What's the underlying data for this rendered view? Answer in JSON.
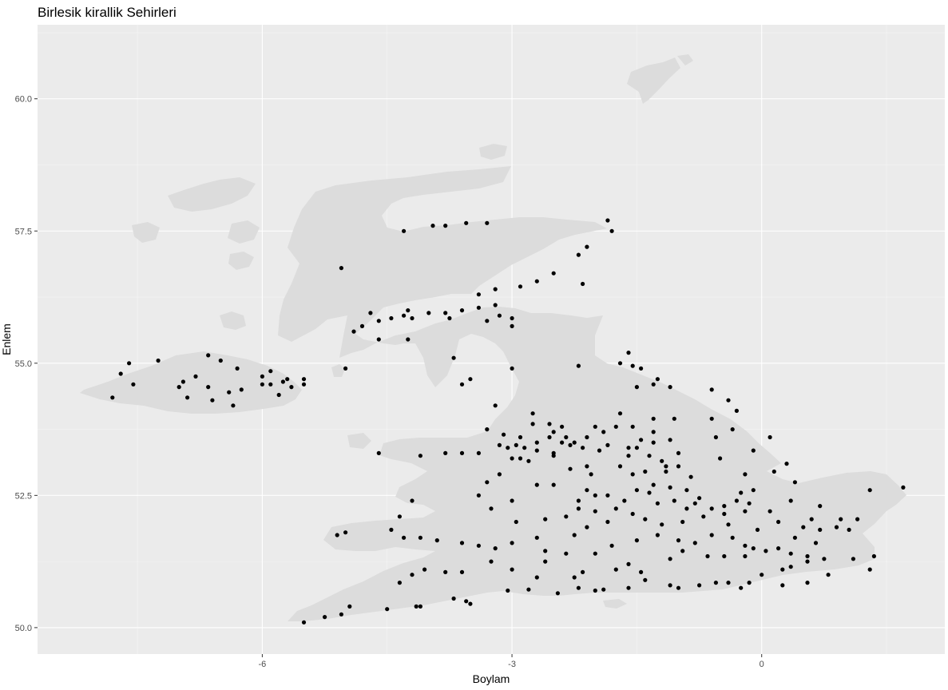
{
  "chart_data": {
    "type": "scatter",
    "title": "Birlesik kirallik Sehirleri",
    "xlabel": "Boylam",
    "ylabel": "Enlem",
    "xlim": [
      -8.7,
      2.2
    ],
    "ylim": [
      49.5,
      61.4
    ],
    "x_ticks": [
      {
        "value": -6,
        "label": "-6"
      },
      {
        "value": -3,
        "label": "-3"
      },
      {
        "value": 0,
        "label": "0"
      }
    ],
    "y_ticks": [
      {
        "value": 50.0,
        "label": "50.0"
      },
      {
        "value": 52.5,
        "label": "52.5"
      },
      {
        "value": 55.0,
        "label": "55.0"
      },
      {
        "value": 57.5,
        "label": "57.5"
      },
      {
        "value": 60.0,
        "label": "60.0"
      }
    ],
    "grid": true,
    "background_color": "#ebebeb",
    "land_color": "#dcdcdc",
    "point_color": "#000000",
    "points": [
      [
        -1.85,
        57.7
      ],
      [
        -1.8,
        57.5
      ],
      [
        -2.1,
        57.2
      ],
      [
        -2.2,
        57.05
      ],
      [
        -2.5,
        56.7
      ],
      [
        -2.7,
        56.55
      ],
      [
        -2.9,
        56.45
      ],
      [
        -3.2,
        56.4
      ],
      [
        -3.4,
        56.3
      ],
      [
        -3.2,
        56.1
      ],
      [
        -3.6,
        56.0
      ],
      [
        -3.4,
        56.05
      ],
      [
        -3.8,
        55.95
      ],
      [
        -4.0,
        55.95
      ],
      [
        -4.2,
        55.85
      ],
      [
        -4.3,
        55.9
      ],
      [
        -4.45,
        55.85
      ],
      [
        -4.6,
        55.8
      ],
      [
        -4.7,
        55.95
      ],
      [
        -4.8,
        55.7
      ],
      [
        -4.9,
        55.6
      ],
      [
        -4.6,
        55.45
      ],
      [
        -4.25,
        55.45
      ],
      [
        -3.7,
        55.1
      ],
      [
        -5.0,
        54.9
      ],
      [
        -3.6,
        54.6
      ],
      [
        -3.5,
        54.7
      ],
      [
        -3.0,
        54.9
      ],
      [
        -3.2,
        54.2
      ],
      [
        -2.75,
        54.05
      ],
      [
        -2.2,
        54.95
      ],
      [
        -1.6,
        55.2
      ],
      [
        -1.7,
        55.0
      ],
      [
        -1.55,
        54.95
      ],
      [
        -1.45,
        54.9
      ],
      [
        -1.3,
        54.6
      ],
      [
        -1.25,
        54.7
      ],
      [
        -1.1,
        54.55
      ],
      [
        -1.5,
        54.55
      ],
      [
        -0.6,
        54.5
      ],
      [
        -0.4,
        54.3
      ],
      [
        -0.3,
        54.1
      ],
      [
        -1.55,
        53.8
      ],
      [
        -1.75,
        53.8
      ],
      [
        -1.9,
        53.7
      ],
      [
        -2.1,
        53.6
      ],
      [
        -2.25,
        53.5
      ],
      [
        -2.4,
        53.5
      ],
      [
        -2.55,
        53.6
      ],
      [
        -2.7,
        53.5
      ],
      [
        -2.85,
        53.4
      ],
      [
        -2.95,
        53.45
      ],
      [
        -3.05,
        53.4
      ],
      [
        -2.5,
        53.7
      ],
      [
        -2.4,
        53.8
      ],
      [
        -2.3,
        53.45
      ],
      [
        -2.15,
        53.4
      ],
      [
        -1.5,
        53.4
      ],
      [
        -1.3,
        53.5
      ],
      [
        -1.1,
        53.55
      ],
      [
        -1.3,
        53.7
      ],
      [
        -1.45,
        53.55
      ],
      [
        -1.0,
        53.3
      ],
      [
        -1.15,
        53.05
      ],
      [
        -1.4,
        52.95
      ],
      [
        -1.55,
        52.9
      ],
      [
        -1.5,
        52.6
      ],
      [
        -1.3,
        52.7
      ],
      [
        -1.85,
        52.5
      ],
      [
        -2.0,
        52.5
      ],
      [
        -2.1,
        52.6
      ],
      [
        -2.2,
        52.4
      ],
      [
        -1.65,
        52.4
      ],
      [
        -1.25,
        52.35
      ],
      [
        -0.9,
        52.25
      ],
      [
        -0.7,
        52.1
      ],
      [
        -0.45,
        52.15
      ],
      [
        -0.2,
        52.2
      ],
      [
        0.1,
        52.2
      ],
      [
        0.2,
        52.0
      ],
      [
        0.5,
        51.9
      ],
      [
        0.7,
        51.85
      ],
      [
        0.9,
        51.9
      ],
      [
        1.15,
        52.05
      ],
      [
        1.3,
        52.6
      ],
      [
        1.7,
        52.65
      ],
      [
        0.4,
        52.75
      ],
      [
        -0.1,
        52.6
      ],
      [
        -0.25,
        52.55
      ],
      [
        -0.45,
        52.3
      ],
      [
        -0.75,
        52.45
      ],
      [
        -1.1,
        52.65
      ],
      [
        -0.6,
        51.75
      ],
      [
        -0.35,
        51.7
      ],
      [
        -0.2,
        51.55
      ],
      [
        -0.1,
        51.5
      ],
      [
        0.05,
        51.45
      ],
      [
        0.2,
        51.5
      ],
      [
        0.35,
        51.4
      ],
      [
        0.55,
        51.35
      ],
      [
        0.75,
        51.3
      ],
      [
        1.1,
        51.3
      ],
      [
        1.35,
        51.35
      ],
      [
        1.3,
        51.1
      ],
      [
        0.55,
        51.25
      ],
      [
        0.35,
        51.15
      ],
      [
        0.25,
        51.1
      ],
      [
        0.0,
        51.0
      ],
      [
        -0.15,
        50.85
      ],
      [
        -0.4,
        50.85
      ],
      [
        -0.75,
        50.8
      ],
      [
        -1.1,
        50.8
      ],
      [
        -1.4,
        50.9
      ],
      [
        -1.6,
        50.75
      ],
      [
        -1.9,
        50.72
      ],
      [
        -2.0,
        50.7
      ],
      [
        -2.2,
        50.75
      ],
      [
        -2.45,
        50.65
      ],
      [
        -2.8,
        50.72
      ],
      [
        -3.05,
        50.7
      ],
      [
        -3.5,
        50.45
      ],
      [
        -3.55,
        50.5
      ],
      [
        -3.7,
        50.55
      ],
      [
        -4.1,
        50.4
      ],
      [
        -4.15,
        50.4
      ],
      [
        -4.5,
        50.35
      ],
      [
        -5.05,
        50.25
      ],
      [
        -5.25,
        50.2
      ],
      [
        -5.5,
        50.1
      ],
      [
        -4.2,
        51.0
      ],
      [
        -4.05,
        51.1
      ],
      [
        -3.6,
        51.05
      ],
      [
        -3.0,
        51.1
      ],
      [
        -2.6,
        51.45
      ],
      [
        -2.6,
        51.25
      ],
      [
        -2.35,
        51.4
      ],
      [
        -2.0,
        51.4
      ],
      [
        -1.8,
        51.55
      ],
      [
        -1.5,
        51.65
      ],
      [
        -1.25,
        51.75
      ],
      [
        -0.95,
        51.45
      ],
      [
        -1.1,
        51.3
      ],
      [
        -1.75,
        51.1
      ],
      [
        -2.15,
        51.05
      ],
      [
        -2.25,
        51.75
      ],
      [
        -2.1,
        51.9
      ],
      [
        -2.7,
        51.7
      ],
      [
        -3.0,
        51.6
      ],
      [
        -3.2,
        51.5
      ],
      [
        -3.4,
        51.55
      ],
      [
        -3.6,
        51.6
      ],
      [
        -3.9,
        51.65
      ],
      [
        -4.1,
        51.7
      ],
      [
        -4.3,
        51.7
      ],
      [
        -4.45,
        51.85
      ],
      [
        -5.0,
        51.8
      ],
      [
        -5.1,
        51.75
      ],
      [
        -3.0,
        52.4
      ],
      [
        -3.25,
        52.25
      ],
      [
        -3.4,
        52.5
      ],
      [
        -4.2,
        52.4
      ],
      [
        -4.35,
        52.1
      ],
      [
        -3.4,
        53.3
      ],
      [
        -3.6,
        53.3
      ],
      [
        -3.8,
        53.3
      ],
      [
        -4.1,
        53.25
      ],
      [
        -4.6,
        53.3
      ],
      [
        -3.0,
        53.2
      ],
      [
        -2.9,
        53.2
      ],
      [
        -2.7,
        53.35
      ],
      [
        -2.5,
        53.3
      ],
      [
        -2.1,
        53.05
      ],
      [
        -2.3,
        53.0
      ],
      [
        -2.5,
        52.7
      ],
      [
        -2.7,
        52.7
      ],
      [
        -2.05,
        52.9
      ],
      [
        -1.7,
        53.05
      ],
      [
        -1.0,
        53.05
      ],
      [
        -0.5,
        53.2
      ],
      [
        -0.55,
        53.6
      ],
      [
        -0.35,
        53.75
      ],
      [
        0.1,
        53.6
      ],
      [
        0.3,
        53.1
      ],
      [
        0.7,
        52.3
      ],
      [
        -6.0,
        54.6
      ],
      [
        -5.9,
        54.6
      ],
      [
        -5.75,
        54.65
      ],
      [
        -5.7,
        54.7
      ],
      [
        -5.65,
        54.55
      ],
      [
        -5.5,
        54.6
      ],
      [
        -5.9,
        54.85
      ],
      [
        -6.25,
        54.5
      ],
      [
        -6.65,
        54.55
      ],
      [
        -6.6,
        54.3
      ],
      [
        -6.4,
        54.45
      ],
      [
        -6.35,
        54.2
      ],
      [
        -6.9,
        54.35
      ],
      [
        -7.0,
        54.55
      ],
      [
        -6.8,
        54.75
      ],
      [
        -6.95,
        54.65
      ],
      [
        -6.65,
        55.15
      ],
      [
        -6.5,
        55.05
      ],
      [
        -7.25,
        55.05
      ],
      [
        -7.6,
        55.0
      ],
      [
        -7.7,
        54.8
      ],
      [
        -7.55,
        54.6
      ],
      [
        -7.8,
        54.35
      ],
      [
        -6.0,
        54.75
      ],
      [
        -5.8,
        54.4
      ],
      [
        -6.3,
        54.9
      ],
      [
        -5.5,
        54.7
      ],
      [
        -5.05,
        56.8
      ],
      [
        -4.3,
        57.5
      ],
      [
        -3.95,
        57.6
      ],
      [
        -3.8,
        57.6
      ],
      [
        -3.55,
        57.65
      ],
      [
        -3.3,
        57.65
      ],
      [
        -2.15,
        56.5
      ],
      [
        -3.0,
        55.7
      ],
      [
        -3.0,
        55.85
      ],
      [
        -3.15,
        55.9
      ],
      [
        -3.3,
        55.8
      ],
      [
        -3.75,
        55.85
      ],
      [
        -4.25,
        56.0
      ],
      [
        -3.1,
        53.65
      ],
      [
        -2.75,
        53.85
      ],
      [
        -2.9,
        53.6
      ],
      [
        -2.5,
        53.25
      ],
      [
        -1.95,
        53.35
      ],
      [
        -1.85,
        53.45
      ],
      [
        -1.6,
        53.25
      ],
      [
        -1.2,
        53.15
      ],
      [
        -1.15,
        52.95
      ],
      [
        -0.85,
        52.85
      ],
      [
        -0.9,
        52.6
      ],
      [
        -0.8,
        52.35
      ],
      [
        -0.6,
        52.25
      ],
      [
        -0.3,
        52.4
      ],
      [
        -0.15,
        52.35
      ],
      [
        0.35,
        52.4
      ],
      [
        0.6,
        52.05
      ],
      [
        0.95,
        52.05
      ],
      [
        1.05,
        51.85
      ],
      [
        -0.2,
        51.35
      ],
      [
        -0.45,
        51.35
      ],
      [
        -0.65,
        51.35
      ],
      [
        -0.8,
        51.6
      ],
      [
        -1.0,
        51.65
      ],
      [
        -1.6,
        51.2
      ],
      [
        -1.45,
        51.05
      ],
      [
        -2.25,
        50.95
      ],
      [
        -2.7,
        50.95
      ],
      [
        -3.25,
        51.25
      ],
      [
        -3.8,
        51.05
      ],
      [
        -4.35,
        50.85
      ],
      [
        -4.95,
        50.4
      ],
      [
        -1.0,
        50.75
      ],
      [
        -0.55,
        50.85
      ],
      [
        -0.25,
        50.75
      ],
      [
        0.25,
        50.8
      ],
      [
        0.55,
        50.85
      ],
      [
        0.8,
        51.0
      ],
      [
        -2.0,
        52.2
      ],
      [
        -2.35,
        52.1
      ],
      [
        -2.6,
        52.05
      ],
      [
        -2.95,
        52.0
      ],
      [
        -1.75,
        52.25
      ],
      [
        -1.55,
        52.15
      ],
      [
        -1.4,
        52.05
      ],
      [
        -1.2,
        51.95
      ],
      [
        -0.95,
        52.0
      ],
      [
        -0.4,
        51.95
      ],
      [
        -0.05,
        51.85
      ],
      [
        0.4,
        51.7
      ],
      [
        0.65,
        51.6
      ],
      [
        -1.85,
        52.0
      ],
      [
        -2.2,
        52.25
      ],
      [
        -1.05,
        52.4
      ],
      [
        -1.35,
        52.55
      ],
      [
        -0.2,
        52.9
      ],
      [
        0.15,
        52.95
      ],
      [
        -0.1,
        53.35
      ],
      [
        -0.6,
        53.95
      ],
      [
        -1.05,
        53.95
      ],
      [
        -1.3,
        53.95
      ],
      [
        -1.7,
        54.05
      ],
      [
        -2.55,
        53.85
      ],
      [
        -2.0,
        53.8
      ],
      [
        -1.6,
        53.4
      ],
      [
        -1.35,
        53.25
      ],
      [
        -2.35,
        53.6
      ],
      [
        -3.3,
        53.75
      ],
      [
        -3.15,
        53.45
      ],
      [
        -2.8,
        53.15
      ],
      [
        -3.15,
        52.9
      ],
      [
        -3.3,
        52.75
      ]
    ]
  }
}
